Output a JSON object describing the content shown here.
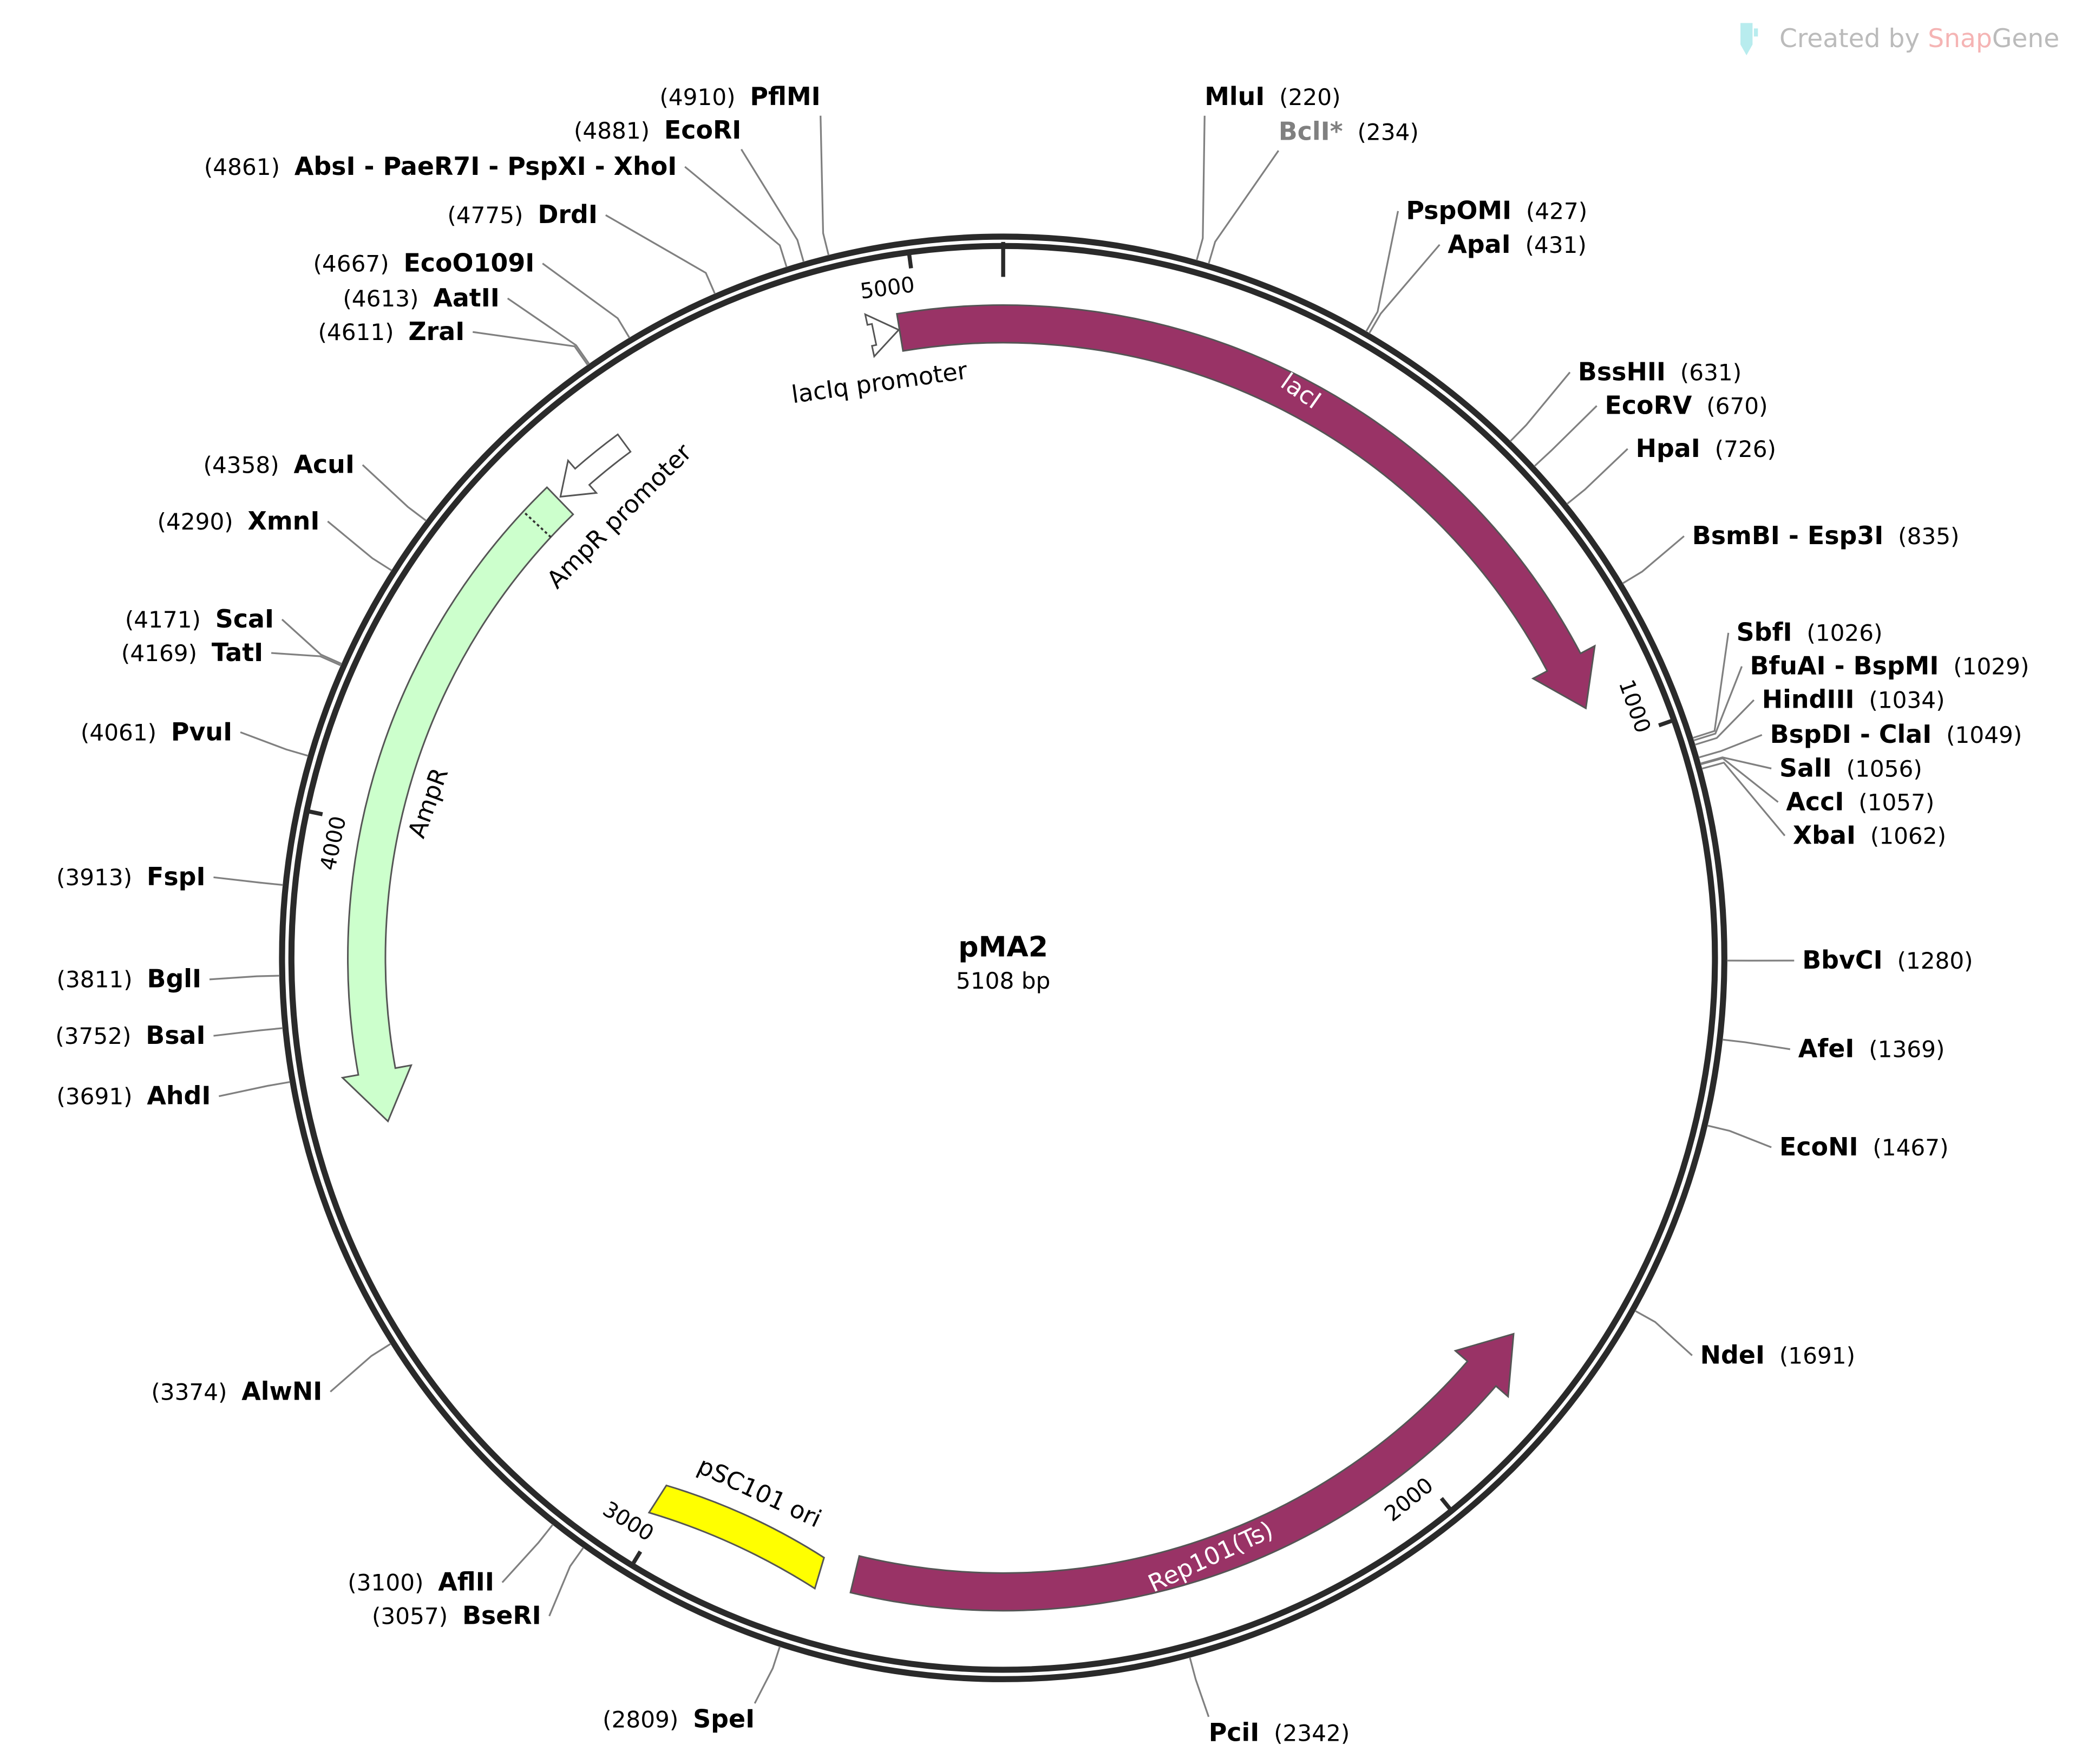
{
  "watermark": {
    "prefix": "Created by ",
    "brand_a": "Snap",
    "brand_b": "Gene",
    "icon": "test-tube-icon",
    "colors": {
      "text": "#bbbbbb",
      "snap": "#f5b4b4",
      "icon": "#b8ecee"
    }
  },
  "plasmid": {
    "name": "pMA2",
    "length_label": "5108 bp",
    "length_bp": 5108
  },
  "ticks": [
    {
      "bp": 1000,
      "label": "1000"
    },
    {
      "bp": 2000,
      "label": "2000"
    },
    {
      "bp": 3000,
      "label": "3000"
    },
    {
      "bp": 4000,
      "label": "4000"
    },
    {
      "bp": 5000,
      "label": "5000"
    }
  ],
  "features": [
    {
      "name": "lacI",
      "start": 4975,
      "end": 948,
      "direction": "forward",
      "color": "#993366",
      "label_color": "#ffffff",
      "type": "cds"
    },
    {
      "name": "Rep101(Ts)",
      "start": 2746,
      "end": 1793,
      "direction": "reverse",
      "color": "#993366",
      "label_color": "#ffffff",
      "type": "cds"
    },
    {
      "name": "pSC101 ori",
      "start": 3016,
      "end": 2790,
      "direction": "none",
      "color": "#ffff00",
      "label_color": "#000000",
      "type": "rep_origin"
    },
    {
      "name": "AmpR",
      "start": 4482,
      "end": 3620,
      "direction": "reverse",
      "color": "#ccffcc",
      "label_color": "#000000",
      "type": "cds"
    },
    {
      "name": "AmpR promoter",
      "start": 4592,
      "end": 4486,
      "direction": "reverse",
      "color": "#ffffff",
      "label_color": "#000000",
      "type": "promoter"
    },
    {
      "name": "lacIq promoter",
      "start": 4942,
      "end": 4974,
      "direction": "forward",
      "color": "#ffffff",
      "label_color": "#000000",
      "type": "promoter"
    }
  ],
  "enzymes": [
    {
      "name": "MluI",
      "pos": 220
    },
    {
      "name": "BclI*",
      "pos": 234,
      "muted": true
    },
    {
      "name": "PspOMI",
      "pos": 427
    },
    {
      "name": "ApaI",
      "pos": 431
    },
    {
      "name": "BssHII",
      "pos": 631
    },
    {
      "name": "EcoRV",
      "pos": 670
    },
    {
      "name": "HpaI",
      "pos": 726
    },
    {
      "name": "BsmBI - Esp3I",
      "pos": 835
    },
    {
      "name": "SbfI",
      "pos": 1026
    },
    {
      "name": "BfuAI - BspMI",
      "pos": 1029
    },
    {
      "name": "HindIII",
      "pos": 1034
    },
    {
      "name": "BspDI - ClaI",
      "pos": 1049
    },
    {
      "name": "SalI",
      "pos": 1056
    },
    {
      "name": "AccI",
      "pos": 1057
    },
    {
      "name": "XbaI",
      "pos": 1062
    },
    {
      "name": "BbvCI",
      "pos": 1280
    },
    {
      "name": "AfeI",
      "pos": 1369
    },
    {
      "name": "EcoNI",
      "pos": 1467
    },
    {
      "name": "NdeI",
      "pos": 1691
    },
    {
      "name": "PciI",
      "pos": 2342
    },
    {
      "name": "SpeI",
      "pos": 2809
    },
    {
      "name": "BseRI",
      "pos": 3057
    },
    {
      "name": "AflII",
      "pos": 3100
    },
    {
      "name": "AlwNI",
      "pos": 3374
    },
    {
      "name": "AhdI",
      "pos": 3691
    },
    {
      "name": "BsaI",
      "pos": 3752
    },
    {
      "name": "BglI",
      "pos": 3811
    },
    {
      "name": "FspI",
      "pos": 3913
    },
    {
      "name": "PvuI",
      "pos": 4061
    },
    {
      "name": "TatI",
      "pos": 4169
    },
    {
      "name": "ScaI",
      "pos": 4171
    },
    {
      "name": "XmnI",
      "pos": 4290
    },
    {
      "name": "AcuI",
      "pos": 4358
    },
    {
      "name": "ZraI",
      "pos": 4611
    },
    {
      "name": "AatII",
      "pos": 4613
    },
    {
      "name": "EcoO109I",
      "pos": 4667
    },
    {
      "name": "DrdI",
      "pos": 4775
    },
    {
      "name": "AbsI - PaeR7I - PspXI - XhoI",
      "pos": 4861
    },
    {
      "name": "EcoRI",
      "pos": 4881
    },
    {
      "name": "PflMI",
      "pos": 4910
    }
  ]
}
